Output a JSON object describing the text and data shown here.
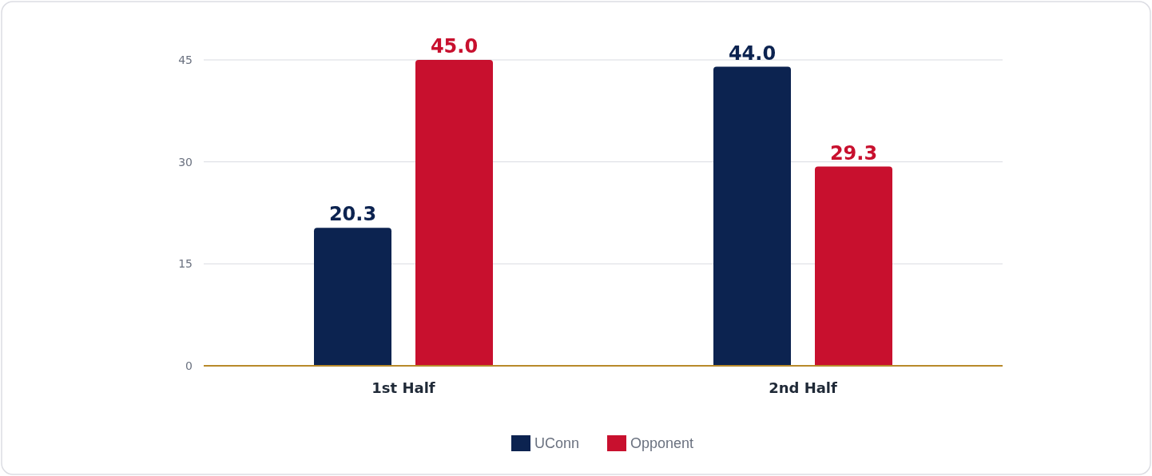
{
  "chart_data": {
    "type": "bar",
    "categories": [
      "1st Half",
      "2nd Half"
    ],
    "series": [
      {
        "name": "UConn",
        "color": "#0c2350",
        "values": [
          20.3,
          44.0
        ],
        "value_labels": [
          "20.3",
          "44.0"
        ]
      },
      {
        "name": "Opponent",
        "color": "#c8102e",
        "values": [
          45.0,
          29.3
        ],
        "value_labels": [
          "45.0",
          "29.3"
        ]
      }
    ],
    "ylim": [
      0,
      45
    ],
    "yticks": [
      0,
      15,
      30,
      45
    ],
    "grid": "y",
    "legend": "bottom"
  }
}
